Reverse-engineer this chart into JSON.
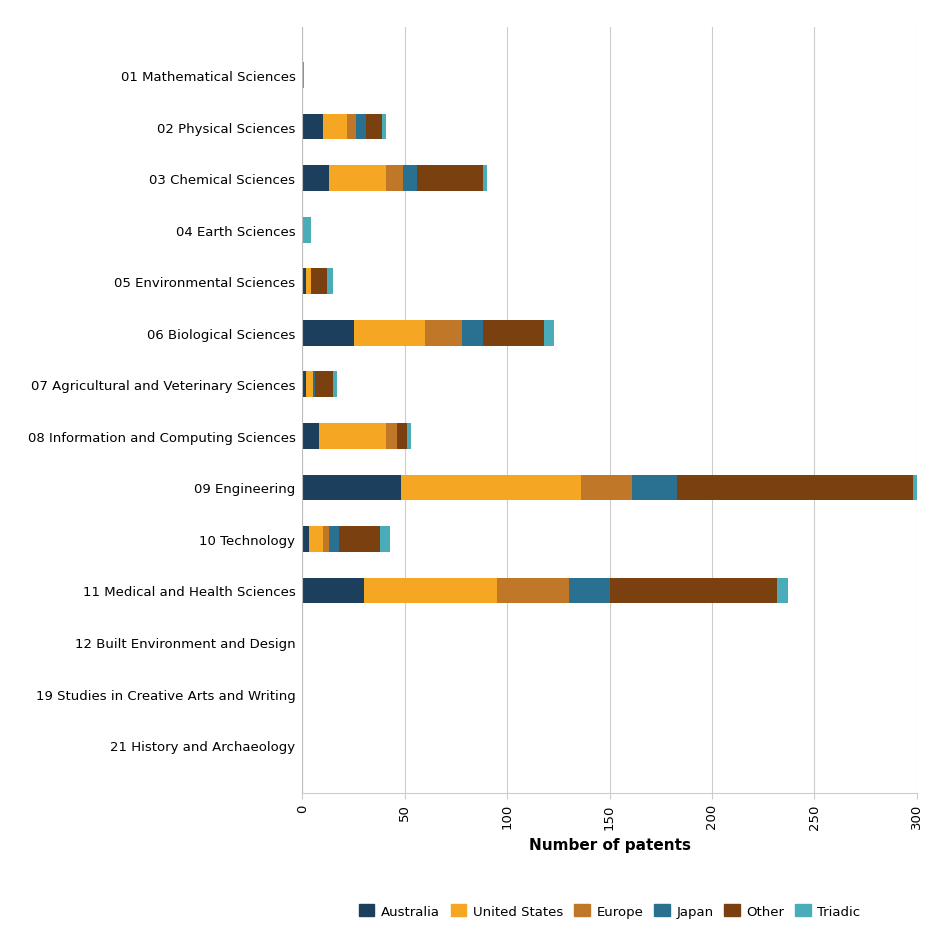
{
  "categories": [
    "01 Mathematical Sciences",
    "02 Physical Sciences",
    "03 Chemical Sciences",
    "04 Earth Sciences",
    "05 Environmental Sciences",
    "06 Biological Sciences",
    "07 Agricultural and Veterinary Sciences",
    "08 Information and Computing Sciences",
    "09 Engineering",
    "10 Technology",
    "11 Medical and Health Sciences",
    "12 Built Environment and Design",
    "19 Studies in Creative Arts and Writing",
    "21 History and Archaeology"
  ],
  "series": {
    "Australia": [
      0,
      10,
      13,
      0,
      2,
      25,
      2,
      8,
      48,
      3,
      30,
      0,
      0,
      0
    ],
    "United States": [
      0,
      12,
      28,
      0,
      2,
      35,
      3,
      33,
      88,
      7,
      65,
      0,
      0,
      0
    ],
    "Europe": [
      0,
      4,
      8,
      0,
      0,
      18,
      0,
      5,
      25,
      3,
      35,
      0,
      0,
      0
    ],
    "Japan": [
      0,
      5,
      7,
      0,
      0,
      10,
      1,
      0,
      22,
      5,
      20,
      0,
      0,
      0
    ],
    "Other": [
      0,
      8,
      32,
      0,
      8,
      30,
      9,
      5,
      115,
      20,
      82,
      0,
      0,
      0
    ],
    "Triadic": [
      1,
      2,
      2,
      4,
      3,
      5,
      2,
      2,
      5,
      5,
      5,
      0,
      0,
      0
    ]
  },
  "colors": {
    "Australia": "#1c3f5e",
    "United States": "#f5a623",
    "Europe": "#c07828",
    "Japan": "#2a7090",
    "Other": "#7a4010",
    "Triadic": "#4aacb8"
  },
  "xlabel": "Number of patents",
  "xlim": [
    0,
    300
  ],
  "xticks": [
    0,
    50,
    100,
    150,
    200,
    250,
    300
  ],
  "background_color": "#ffffff",
  "grid_color": "#cccccc",
  "bar_height": 0.5
}
